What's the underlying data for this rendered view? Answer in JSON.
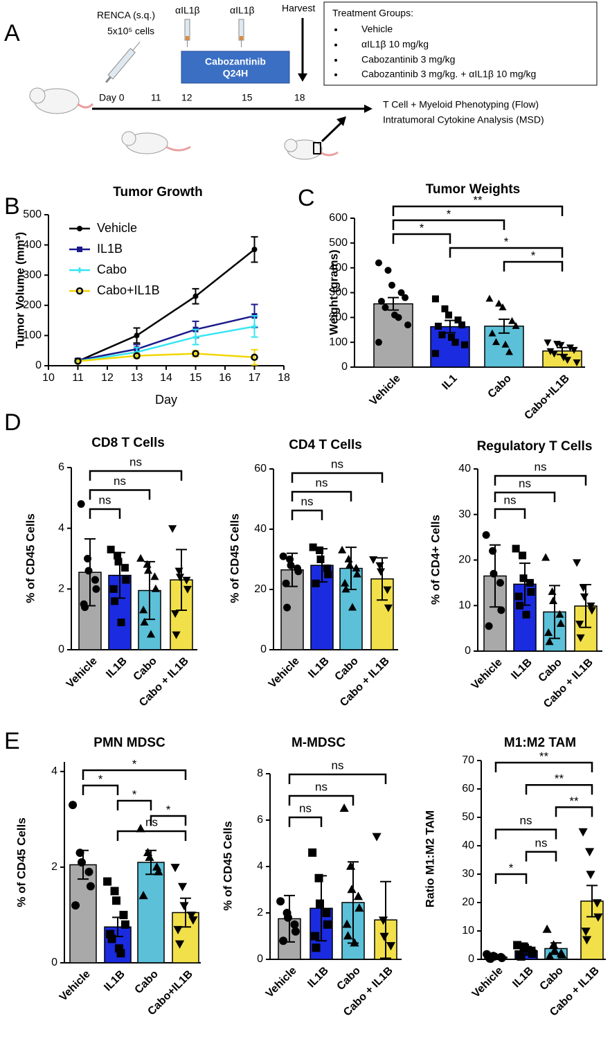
{
  "panel_labels": [
    "A",
    "B",
    "C",
    "D",
    "E"
  ],
  "schematic": {
    "injection": [
      "RENCA (s.q.)",
      "5x10⁵ cells"
    ],
    "antibody": [
      "αIL1β",
      "αIL1β"
    ],
    "drug": [
      "Cabozantinib",
      "Q24H"
    ],
    "harvest": "Harvest",
    "days": [
      "Day 0",
      "11",
      "12",
      "15",
      "18"
    ],
    "groups_title": "Treatment Groups:",
    "groups": [
      "Vehicle",
      "αIL1β 10 mg/kg",
      "Cabozantinib 3 mg/kg",
      "Cabozantinib 3 mg/kg.  + αIL1β 10 mg/kg"
    ],
    "readouts": [
      "T Cell + Myeloid Phenotyping (Flow)",
      "Intratumoral Cytokine Analysis (MSD)"
    ]
  },
  "chart_data": [
    {
      "type": "line",
      "title": "Tumor Growth",
      "xlabel": "Day",
      "ylabel": "Tumor  Volume (mm³)",
      "x": [
        11,
        13,
        15,
        17
      ],
      "xlim": [
        10,
        18
      ],
      "xticks": [
        10,
        11,
        12,
        13,
        14,
        15,
        16,
        17,
        18
      ],
      "ylim": [
        0,
        500
      ],
      "yticks": [
        0,
        100,
        200,
        300,
        400,
        500
      ],
      "legend": "upper left",
      "series": [
        {
          "name": "Vehicle",
          "color": "#000000",
          "marker": "circle",
          "values": [
            15,
            100,
            230,
            385
          ],
          "errors": [
            5,
            25,
            25,
            42
          ]
        },
        {
          "name": "IL1B",
          "color": "#1a1a8c",
          "marker": "square",
          "values": [
            18,
            55,
            120,
            165
          ],
          "errors": [
            5,
            15,
            27,
            38
          ]
        },
        {
          "name": "Cabo",
          "color": "#33e6f2",
          "marker": "plus",
          "values": [
            15,
            45,
            95,
            130
          ],
          "errors": [
            5,
            15,
            25,
            35
          ]
        },
        {
          "name": "Cabo+IL1B",
          "color": "#f2d600",
          "marker": "open-circle",
          "values": [
            15,
            33,
            40,
            28
          ],
          "errors": [
            5,
            8,
            10,
            25
          ]
        }
      ]
    },
    {
      "type": "bar",
      "title": "Tumor Weights",
      "ylabel": "Weight (grams)",
      "categories": [
        "Vehicle",
        "IL1",
        "Cabo",
        "Cabo+IL1B"
      ],
      "values": [
        255,
        163,
        165,
        65
      ],
      "errors": [
        25,
        25,
        28,
        14
      ],
      "colors": [
        "#a9a9a9",
        "#1a2be0",
        "#5bc0d8",
        "#f2e04a"
      ],
      "markers": [
        "circle",
        "square",
        "triangle",
        "triangle-down"
      ],
      "points": [
        [
          420,
          390,
          330,
          300,
          280,
          265,
          240,
          210,
          200,
          170,
          100
        ],
        [
          275,
          235,
          210,
          190,
          170,
          165,
          130,
          120,
          100,
          90,
          55
        ],
        [
          275,
          255,
          240,
          185,
          165,
          135,
          100,
          90,
          60
        ],
        [
          100,
          95,
          90,
          80,
          70,
          65,
          55,
          40,
          30,
          20
        ]
      ],
      "ylim": [
        0,
        600
      ],
      "yticks": [
        0,
        100,
        200,
        300,
        400,
        500,
        600
      ],
      "brackets": [
        {
          "from": 0,
          "to": 3,
          "label": "**"
        },
        {
          "from": 0,
          "to": 2,
          "label": "*"
        },
        {
          "from": 0,
          "to": 1,
          "label": "*"
        },
        {
          "from": 1,
          "to": 3,
          "label": "*"
        },
        {
          "from": 2,
          "to": 3,
          "label": "*"
        }
      ]
    },
    {
      "type": "bar",
      "title": "CD8 T Cells",
      "ylabel": "% of CD45 Cells",
      "categories": [
        "Vehicle",
        "IL1B",
        "Cabo",
        "Cabo + IL1B"
      ],
      "values": [
        2.55,
        2.45,
        1.95,
        2.3
      ],
      "errors": [
        1.1,
        0.75,
        0.95,
        1.0
      ],
      "colors": [
        "#a9a9a9",
        "#1a2be0",
        "#5bc0d8",
        "#f2e04a"
      ],
      "markers": [
        "circle",
        "square",
        "triangle",
        "triangle-down"
      ],
      "points": [
        [
          4.8,
          3.0,
          2.6,
          2.3,
          2.0,
          1.5,
          1.4
        ],
        [
          3.3,
          3.1,
          2.9,
          2.7,
          2.3,
          2.0,
          1.6,
          0.9
        ],
        [
          3.0,
          2.8,
          2.6,
          2.4,
          2.0,
          1.3,
          0.9,
          0.5
        ],
        [
          4.0,
          2.6,
          2.4,
          2.3,
          2.0,
          1.2,
          0.5
        ]
      ],
      "ylim": [
        0,
        6
      ],
      "yticks": [
        0,
        2,
        4,
        6
      ],
      "brackets": [
        {
          "from": 0,
          "to": 3,
          "label": "ns"
        },
        {
          "from": 0,
          "to": 2,
          "label": "ns"
        },
        {
          "from": 0,
          "to": 1,
          "label": "ns"
        }
      ]
    },
    {
      "type": "bar",
      "title": "CD4 T Cells",
      "ylabel": "% of CD45 Cells",
      "categories": [
        "Vehicle",
        "IL1B",
        "Cabo",
        "Cabo + IL1B"
      ],
      "values": [
        26.5,
        28,
        27,
        23.5
      ],
      "errors": [
        5.5,
        5.5,
        7,
        7
      ],
      "colors": [
        "#a9a9a9",
        "#1a2be0",
        "#5bc0d8",
        "#f2e04a"
      ],
      "markers": [
        "circle",
        "square",
        "triangle",
        "triangle-down"
      ],
      "points": [
        [
          31,
          30,
          28,
          27,
          26,
          22,
          14
        ],
        [
          34,
          33,
          30,
          27,
          25,
          22
        ],
        [
          33,
          30,
          28,
          27,
          25,
          22,
          20,
          14
        ],
        [
          30,
          28,
          26,
          20,
          14
        ]
      ],
      "ylim": [
        0,
        60
      ],
      "yticks": [
        0,
        20,
        40,
        60
      ],
      "brackets": [
        {
          "from": 0,
          "to": 3,
          "label": "ns"
        },
        {
          "from": 0,
          "to": 2,
          "label": "ns"
        },
        {
          "from": 0,
          "to": 1,
          "label": "ns"
        }
      ]
    },
    {
      "type": "bar",
      "title": "Regulatory T Cells",
      "ylabel": "% of CD4+ Cells",
      "categories": [
        "Vehicle",
        "IL1B",
        "Cabo",
        "Cabo + IL1B"
      ],
      "values": [
        16.5,
        14.7,
        8.6,
        9.9
      ],
      "errors": [
        6.8,
        4.6,
        5.8,
        4.7
      ],
      "colors": [
        "#a9a9a9",
        "#1a2be0",
        "#5bc0d8",
        "#f2e04a"
      ],
      "markers": [
        "circle",
        "square",
        "triangle",
        "triangle-down"
      ],
      "points": [
        [
          25.5,
          22,
          17,
          15,
          9,
          5.5
        ],
        [
          22.5,
          21,
          16,
          15,
          13,
          12,
          10,
          8
        ],
        [
          20.5,
          13,
          11,
          8,
          6,
          4,
          2
        ],
        [
          19.5,
          14,
          12,
          10,
          9,
          6,
          3
        ]
      ],
      "ylim": [
        0,
        40
      ],
      "yticks": [
        0,
        10,
        20,
        30,
        40
      ],
      "brackets": [
        {
          "from": 0,
          "to": 3,
          "label": "ns"
        },
        {
          "from": 0,
          "to": 2,
          "label": "ns"
        },
        {
          "from": 0,
          "to": 1,
          "label": "ns"
        }
      ]
    },
    {
      "type": "bar",
      "title": "PMN MDSC",
      "ylabel": "% of CD45 Cells",
      "categories": [
        "Vehicle",
        "IL1B",
        "Cabo",
        "Cabo+IL1B"
      ],
      "values": [
        2.05,
        0.75,
        2.1,
        1.05
      ],
      "errors": [
        0.3,
        0.2,
        0.25,
        0.3
      ],
      "colors": [
        "#a9a9a9",
        "#1a2be0",
        "#5bc0d8",
        "#f2e04a"
      ],
      "markers": [
        "circle",
        "square",
        "triangle",
        "triangle-down"
      ],
      "points": [
        [
          3.3,
          2.3,
          2.1,
          1.9,
          1.6,
          1.2
        ],
        [
          1.7,
          1.5,
          1.3,
          1.0,
          0.8,
          0.6,
          0.5,
          0.3,
          0.2
        ],
        [
          2.8,
          2.3,
          2.2,
          2.0,
          1.9,
          1.4
        ],
        [
          2.0,
          1.6,
          1.2,
          1.0,
          0.9,
          0.7,
          0.4
        ]
      ],
      "ylim": [
        0,
        4.2
      ],
      "yticks": [
        0,
        2,
        4
      ],
      "brackets": [
        {
          "from": 0,
          "to": 3,
          "label": "*"
        },
        {
          "from": 0,
          "to": 1,
          "label": "*"
        },
        {
          "from": 1,
          "to": 2,
          "label": "*"
        },
        {
          "from": 2,
          "to": 3,
          "label": "*"
        },
        {
          "from": 1,
          "to": 3,
          "label": "ns"
        }
      ]
    },
    {
      "type": "bar",
      "title": "M-MDSC",
      "ylabel": "% of CD45 Cells",
      "categories": [
        "Vehicle",
        "IL1B",
        "Cabo",
        "Cabo + IL1B"
      ],
      "values": [
        1.75,
        2.2,
        2.45,
        1.7
      ],
      "errors": [
        1.0,
        1.4,
        1.75,
        1.65
      ],
      "colors": [
        "#a9a9a9",
        "#1a2be0",
        "#5bc0d8",
        "#f2e04a"
      ],
      "markers": [
        "circle",
        "square",
        "triangle",
        "triangle-down"
      ],
      "points": [
        [
          2.5,
          2.0,
          1.8,
          1.5,
          1.2,
          0.8
        ],
        [
          4.6,
          3.5,
          2.4,
          2.0,
          1.5,
          1.0,
          0.5
        ],
        [
          6.5,
          4.0,
          3.0,
          2.7,
          2.2,
          1.5,
          1.0,
          0.7
        ],
        [
          5.3,
          1.7,
          1.0,
          0.6
        ]
      ],
      "ylim": [
        0,
        8
      ],
      "yticks": [
        0,
        2,
        4,
        6,
        8
      ],
      "brackets": [
        {
          "from": 0,
          "to": 3,
          "label": "ns"
        },
        {
          "from": 0,
          "to": 2,
          "label": "ns"
        },
        {
          "from": 0,
          "to": 1,
          "label": "ns"
        }
      ]
    },
    {
      "type": "bar",
      "title": "M1:M2 TAM",
      "ylabel": "Ratio M1:M2 TAM",
      "categories": [
        "Vehicle",
        "IL1B",
        "Cabo",
        "Cabo + IL1B"
      ],
      "values": [
        0.8,
        3,
        3.8,
        20.5
      ],
      "errors": [
        0.5,
        1.5,
        2,
        5.5
      ],
      "colors": [
        "#a9a9a9",
        "#1a2be0",
        "#5bc0d8",
        "#f2e04a"
      ],
      "markers": [
        "circle",
        "square",
        "triangle",
        "triangle-down"
      ],
      "points": [
        [
          1.8,
          1.2,
          1,
          0.8,
          0.5,
          0.3,
          0.2
        ],
        [
          5,
          4.5,
          4,
          3,
          2,
          1.5,
          1
        ],
        [
          10.5,
          5,
          3,
          2,
          1.5,
          1
        ],
        [
          45,
          38,
          30,
          20,
          15,
          10,
          7
        ]
      ],
      "ylim": [
        0,
        70
      ],
      "yticks": [
        0,
        10,
        20,
        30,
        40,
        50,
        60,
        70
      ],
      "brackets": [
        {
          "from": 0,
          "to": 3,
          "label": "**"
        },
        {
          "from": 1,
          "to": 3,
          "label": "**"
        },
        {
          "from": 2,
          "to": 3,
          "label": "**"
        },
        {
          "from": 0,
          "to": 2,
          "label": "ns"
        },
        {
          "from": 1,
          "to": 2,
          "label": "ns"
        },
        {
          "from": 0,
          "to": 1,
          "label": "*"
        }
      ]
    }
  ]
}
